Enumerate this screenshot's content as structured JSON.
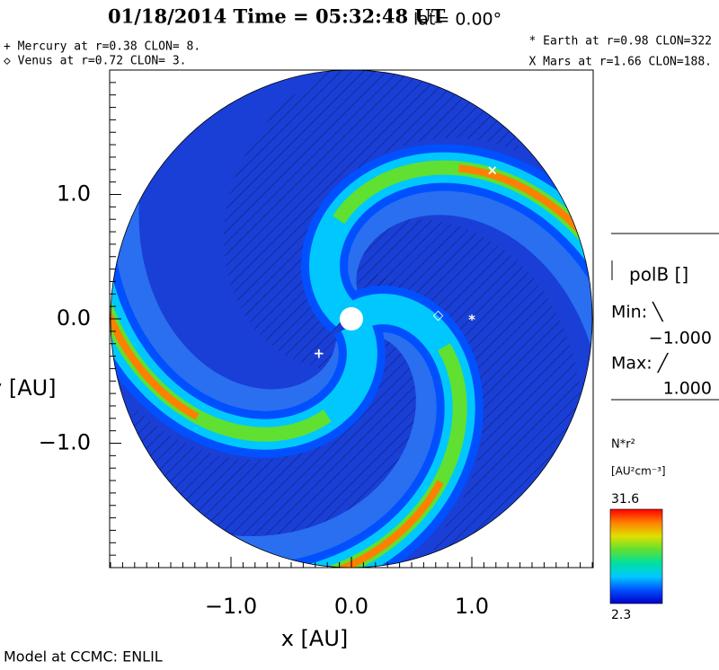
{
  "chart_data": {
    "type": "field",
    "title": "01/18/2014 Time = 05:32:48 UT",
    "subtitle": "lat= 0.00°",
    "annotations": [
      "+ Mercury at r=0.38 CLON=  8.",
      "◇ Venus at r=0.72 CLON=  3.",
      "* Earth at  r=0.98 CLON=322",
      "X Mars at r=1.66 CLON=188."
    ],
    "xlabel": "x [AU]",
    "ylabel": "y [AU]",
    "xlim": [
      -2,
      2
    ],
    "ylim": [
      -2,
      2
    ],
    "xticks": [
      {
        "value": -1,
        "label": "−1.0"
      },
      {
        "value": 0,
        "label": "0.0"
      },
      {
        "value": 1,
        "label": "1.0"
      }
    ],
    "yticks": [
      {
        "value": -1,
        "label": "−1.0"
      },
      {
        "value": 0,
        "label": "0.0"
      },
      {
        "value": 1,
        "label": "1.0"
      }
    ],
    "markers": [
      {
        "symbol": "+",
        "x": -0.27,
        "y": -0.28
      },
      {
        "symbol": "◇",
        "x": 0.72,
        "y": 0.03
      },
      {
        "symbol": "*",
        "x": 1.0,
        "y": -0.01
      },
      {
        "symbol": "×",
        "x": 1.17,
        "y": 1.19
      }
    ],
    "side_panel": {
      "label": "polB []",
      "min_label": "Min: ╲",
      "min": "−1.000",
      "max_label": "Max: ╱",
      "max": "1.000"
    },
    "colorbar": {
      "label": "N*r²",
      "units": "[AU²cm⁻³]",
      "max": 31.6,
      "min": 2.3,
      "colors": [
        "#0000c8",
        "#0050ff",
        "#00c8ff",
        "#00e0a0",
        "#60e030",
        "#e0e000",
        "#ff8000",
        "#ff0000"
      ]
    },
    "footer": "Model at CCMC: ENLIL"
  }
}
